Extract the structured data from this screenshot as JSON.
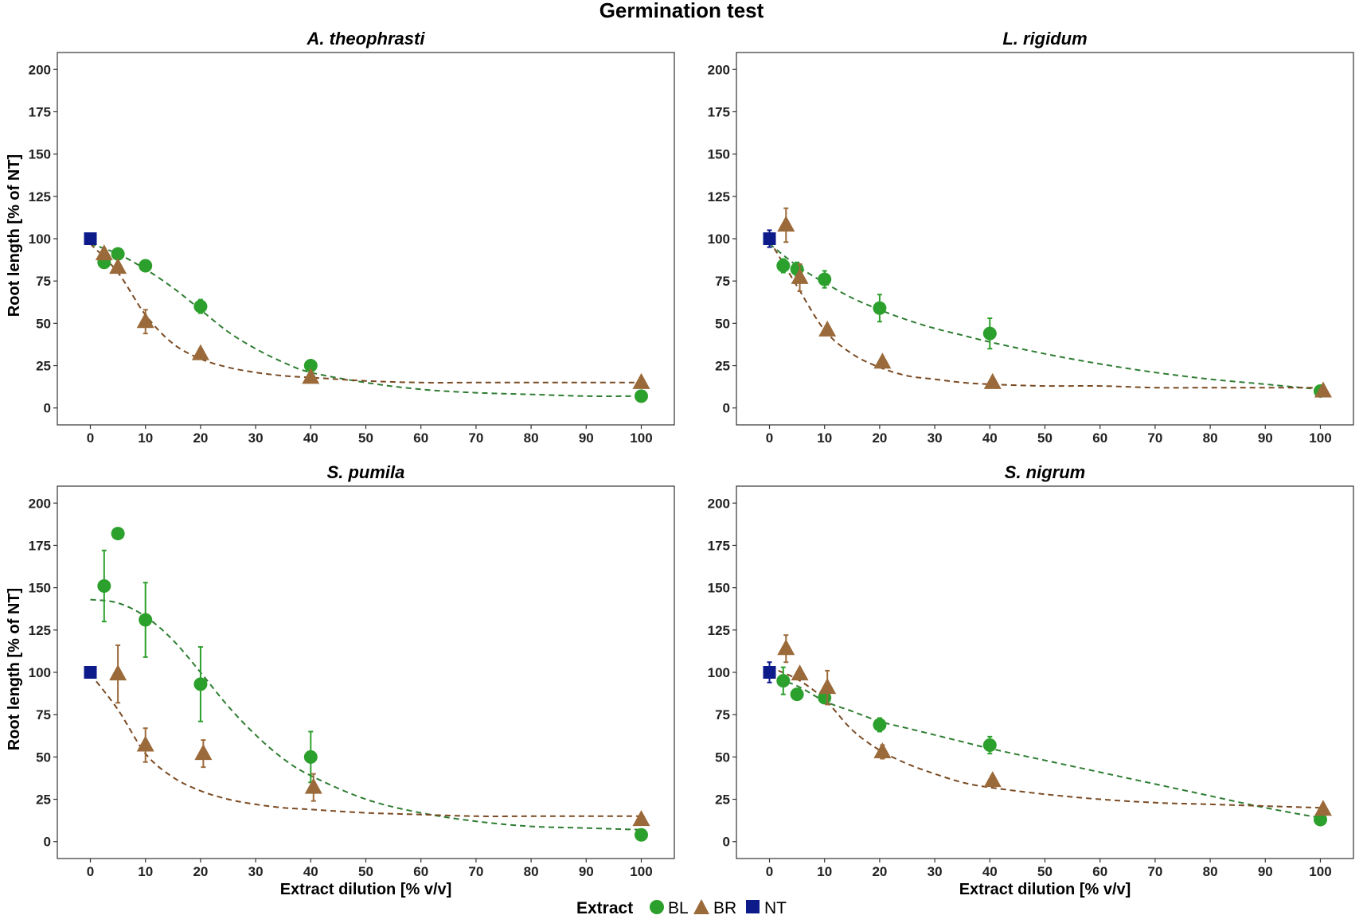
{
  "figure_title": "Germination test",
  "legend": {
    "title": "Extract",
    "items": [
      {
        "label": "BL",
        "shape": "circle",
        "color": "#2ca02c"
      },
      {
        "label": "BR",
        "shape": "triangle",
        "color": "#9b6a3a"
      },
      {
        "label": "NT",
        "shape": "square",
        "color": "#0d1a8a"
      }
    ]
  },
  "colors": {
    "bl": "#2ca02c",
    "br": "#9b6a3a",
    "nt": "#0d1a8a",
    "bl_fit": "#2e7d32",
    "br_fit": "#7a4a22"
  },
  "chart_data": [
    {
      "type": "scatter",
      "title": "A. theophrasti",
      "xlabel": "Extract dilution [% v/v]",
      "ylabel": "Root length [% of NT]",
      "xlim": [
        -6,
        106
      ],
      "ylim": [
        -10,
        210
      ],
      "xticks": [
        0,
        10,
        20,
        30,
        40,
        50,
        60,
        70,
        80,
        90,
        100
      ],
      "yticks": [
        0,
        25,
        50,
        75,
        100,
        125,
        150,
        175,
        200
      ],
      "series": [
        {
          "name": "BL",
          "x": [
            2.5,
            5,
            10,
            20,
            40,
            100
          ],
          "y": [
            86,
            91,
            84,
            60,
            25,
            7
          ],
          "err": [
            2,
            2,
            2,
            4,
            2,
            1
          ],
          "fit": {
            "x": [
              0,
              5,
              10,
              15,
              20,
              25,
              30,
              35,
              40,
              50,
              60,
              70,
              80,
              90,
              100
            ],
            "y": [
              97,
              91,
              82,
              71,
              58,
              45,
              35,
              27,
              21,
              15,
              11,
              9,
              8,
              7,
              7
            ]
          }
        },
        {
          "name": "BR",
          "x": [
            2.5,
            5,
            10,
            20,
            40,
            100
          ],
          "y": [
            91,
            83,
            51,
            32,
            18,
            15
          ],
          "err": [
            2,
            2,
            7,
            3,
            2,
            1
          ],
          "fit": {
            "x": [
              0,
              5,
              10,
              15,
              20,
              25,
              30,
              35,
              40,
              50,
              60,
              70,
              80,
              90,
              100
            ],
            "y": [
              97,
              80,
              55,
              38,
              29,
              24,
              21,
              19,
              18,
              16,
              15,
              15,
              15,
              15,
              15
            ]
          }
        },
        {
          "name": "NT",
          "x": [
            0
          ],
          "y": [
            100
          ],
          "err": [
            1
          ]
        }
      ]
    },
    {
      "type": "scatter",
      "title": "L. rigidum",
      "xlabel": "Extract dilution [% v/v]",
      "ylabel": "Root length [% of NT]",
      "xlim": [
        -6,
        106
      ],
      "ylim": [
        -10,
        210
      ],
      "xticks": [
        0,
        10,
        20,
        30,
        40,
        50,
        60,
        70,
        80,
        90,
        100
      ],
      "yticks": [
        0,
        25,
        50,
        75,
        100,
        125,
        150,
        175,
        200
      ],
      "series": [
        {
          "name": "BL",
          "x": [
            2.5,
            5,
            10,
            20,
            40,
            100
          ],
          "y": [
            84,
            82,
            76,
            59,
            44,
            10
          ],
          "err": [
            4,
            4,
            5,
            8,
            9,
            1
          ],
          "fit": {
            "x": [
              0,
              5,
              10,
              15,
              20,
              25,
              30,
              35,
              40,
              50,
              60,
              70,
              80,
              90,
              100
            ],
            "y": [
              97,
              84,
              74,
              65,
              58,
              52,
              47,
              43,
              39,
              32,
              26,
              21,
              17,
              14,
              11
            ]
          }
        },
        {
          "name": "BR",
          "x": [
            3,
            5.5,
            10.5,
            20.5,
            40.5,
            100.5
          ],
          "y": [
            108,
            77,
            46,
            27,
            15,
            10
          ],
          "err": [
            10,
            8,
            2,
            2,
            1,
            1
          ],
          "fit": {
            "x": [
              0,
              5,
              10,
              15,
              20,
              25,
              30,
              35,
              40,
              50,
              60,
              70,
              80,
              90,
              100
            ],
            "y": [
              99,
              72,
              46,
              32,
              24,
              19,
              17,
              15,
              14,
              13,
              13,
              12,
              12,
              12,
              12
            ]
          }
        },
        {
          "name": "NT",
          "x": [
            0
          ],
          "y": [
            100
          ],
          "err": [
            5
          ]
        }
      ]
    },
    {
      "type": "scatter",
      "title": "S. pumila",
      "xlabel": "Extract dilution [% v/v]",
      "ylabel": "Root length [% of NT]",
      "xlim": [
        -6,
        106
      ],
      "ylim": [
        -10,
        210
      ],
      "xticks": [
        0,
        10,
        20,
        30,
        40,
        50,
        60,
        70,
        80,
        90,
        100
      ],
      "yticks": [
        0,
        25,
        50,
        75,
        100,
        125,
        150,
        175,
        200
      ],
      "series": [
        {
          "name": "BL",
          "x": [
            2.5,
            5,
            10,
            20,
            40,
            100
          ],
          "y": [
            151,
            182,
            131,
            93,
            50,
            4
          ],
          "err": [
            21,
            1,
            22,
            22,
            15,
            1
          ],
          "fit": {
            "x": [
              0,
              5,
              10,
              15,
              20,
              25,
              30,
              35,
              40,
              50,
              60,
              70,
              80,
              90,
              100
            ],
            "y": [
              143,
              141,
              133,
              119,
              100,
              80,
              63,
              49,
              39,
              25,
              17,
              12,
              9,
              8,
              7
            ]
          }
        },
        {
          "name": "BR",
          "x": [
            5,
            10,
            20.5,
            40.5,
            100
          ],
          "y": [
            99,
            57,
            52,
            32,
            13
          ],
          "err": [
            17,
            10,
            8,
            8,
            1
          ],
          "fit": {
            "x": [
              0,
              5,
              10,
              15,
              20,
              25,
              30,
              35,
              40,
              50,
              60,
              70,
              80,
              90,
              100
            ],
            "y": [
              99,
              78,
              52,
              38,
              30,
              25,
              22,
              20,
              19,
              17,
              16,
              15,
              15,
              15,
              15
            ]
          }
        },
        {
          "name": "NT",
          "x": [
            0
          ],
          "y": [
            100
          ],
          "err": [
            1
          ]
        }
      ]
    },
    {
      "type": "scatter",
      "title": "S. nigrum",
      "xlabel": "Extract dilution [% v/v]",
      "ylabel": "Root length [% of NT]",
      "xlim": [
        -6,
        106
      ],
      "ylim": [
        -10,
        210
      ],
      "xticks": [
        0,
        10,
        20,
        30,
        40,
        50,
        60,
        70,
        80,
        90,
        100
      ],
      "yticks": [
        0,
        25,
        50,
        75,
        100,
        125,
        150,
        175,
        200
      ],
      "series": [
        {
          "name": "BL",
          "x": [
            2.5,
            5,
            10,
            20,
            40,
            100
          ],
          "y": [
            95,
            87,
            85,
            69,
            57,
            13
          ],
          "err": [
            8,
            2,
            3,
            4,
            5,
            1
          ],
          "fit": {
            "x": [
              0,
              5,
              10,
              15,
              20,
              25,
              30,
              35,
              40,
              50,
              60,
              70,
              80,
              90,
              100
            ],
            "y": [
              98,
              92,
              83,
              77,
              71,
              67,
              63,
              59,
              55,
              48,
              41,
              34,
              27,
              20,
              14
            ]
          }
        },
        {
          "name": "BR",
          "x": [
            3,
            5.5,
            10.5,
            20.5,
            40.5,
            100.5
          ],
          "y": [
            114,
            99,
            91,
            53,
            36,
            19
          ],
          "err": [
            8,
            2,
            10,
            4,
            3,
            1
          ],
          "fit": {
            "x": [
              0,
              5,
              10,
              15,
              20,
              25,
              30,
              35,
              40,
              50,
              60,
              70,
              80,
              90,
              100
            ],
            "y": [
              103,
              96,
              84,
              66,
              54,
              46,
              40,
              35,
              32,
              28,
              25,
              23,
              22,
              21,
              20
            ]
          }
        },
        {
          "name": "NT",
          "x": [
            0
          ],
          "y": [
            100
          ],
          "err": [
            6
          ]
        }
      ]
    }
  ]
}
